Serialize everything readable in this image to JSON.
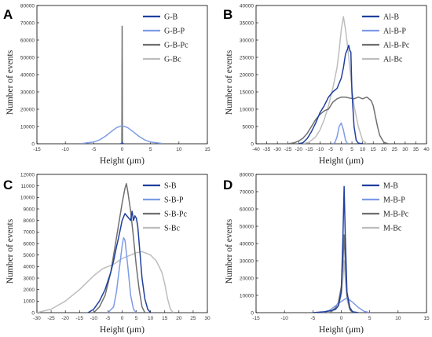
{
  "chart_data": [
    {
      "type": "line",
      "panel_label": "A",
      "xlabel": "Height (μm)",
      "ylabel": "Number of events",
      "xlim": [
        -15,
        15
      ],
      "ylim": [
        0,
        80000
      ],
      "xticks": [
        -15,
        -10,
        -5,
        0,
        5,
        10,
        15
      ],
      "yticks": [
        0,
        10000,
        20000,
        30000,
        40000,
        50000,
        60000,
        70000,
        80000
      ],
      "grid": false,
      "legend_position": "top-right",
      "series": [
        {
          "name": "G-B",
          "color": "#1f3f9e",
          "x": [
            -0.3,
            -0.05,
            0,
            0.05,
            0.3
          ],
          "y": [
            0,
            0,
            800,
            0,
            0
          ]
        },
        {
          "name": "G-B-P",
          "color": "#7e9be6",
          "x": [
            -7,
            -5,
            -4,
            -3,
            -2,
            -1,
            0,
            1,
            2,
            3,
            4,
            5,
            7
          ],
          "y": [
            200,
            1000,
            2200,
            4200,
            6800,
            9300,
            10500,
            9300,
            6800,
            4200,
            2200,
            1000,
            200
          ]
        },
        {
          "name": "G-B-Pc",
          "color": "#6f6f6f",
          "x": [
            -0.3,
            -0.05,
            0,
            0.05,
            0.3
          ],
          "y": [
            0,
            0,
            68000,
            0,
            0
          ]
        },
        {
          "name": "G-Bc",
          "color": "#bdbdbd",
          "x": [
            -0.3,
            -0.05,
            0,
            0.05,
            0.3
          ],
          "y": [
            0,
            0,
            48000,
            0,
            0
          ]
        }
      ]
    },
    {
      "type": "line",
      "panel_label": "B",
      "xlabel": "Height (μm)",
      "ylabel": "Number of events",
      "xlim": [
        -40,
        40
      ],
      "ylim": [
        0,
        40000
      ],
      "xticks": [
        -40,
        -35,
        -30,
        -25,
        -20,
        -15,
        -10,
        -5,
        0,
        5,
        10,
        15,
        20,
        25,
        30,
        35,
        40
      ],
      "yticks": [
        0,
        5000,
        10000,
        15000,
        20000,
        25000,
        30000,
        35000,
        40000
      ],
      "grid": false,
      "legend_position": "top-right",
      "series": [
        {
          "name": "Al-B",
          "color": "#1f3f9e",
          "x": [
            -20,
            -18,
            -16,
            -14,
            -12,
            -10,
            -8,
            -6,
            -4,
            -2,
            0,
            1,
            2,
            3,
            3.5,
            4,
            4.5,
            5,
            6,
            7,
            8,
            10
          ],
          "y": [
            0,
            300,
            1500,
            3500,
            6000,
            9000,
            11000,
            13500,
            15000,
            16000,
            19000,
            22000,
            26000,
            27500,
            28500,
            27000,
            26500,
            15000,
            5000,
            1000,
            200,
            0
          ]
        },
        {
          "name": "Al-B-P",
          "color": "#7e9be6",
          "x": [
            -4,
            -3,
            -2,
            -1,
            0,
            1,
            2,
            3
          ],
          "y": [
            0,
            300,
            2000,
            5000,
            6000,
            4000,
            1000,
            0
          ]
        },
        {
          "name": "Al-B-Pc",
          "color": "#6f6f6f",
          "x": [
            -25,
            -22,
            -20,
            -18,
            -16,
            -14,
            -12,
            -10,
            -9,
            -8,
            -7,
            -6,
            -5,
            -4,
            -3,
            -2,
            0,
            2,
            4,
            6,
            8,
            10,
            12,
            14,
            15,
            16,
            17,
            18,
            20,
            22
          ],
          "y": [
            0,
            300,
            800,
            1600,
            3000,
            5000,
            7000,
            8500,
            9000,
            9500,
            9800,
            10000,
            11000,
            12000,
            12500,
            13000,
            13500,
            13500,
            13200,
            13000,
            13500,
            13000,
            13500,
            12500,
            11000,
            8000,
            5000,
            2500,
            400,
            0
          ]
        },
        {
          "name": "Al-Bc",
          "color": "#bdbdbd",
          "x": [
            -18,
            -15,
            -12,
            -10,
            -8,
            -6,
            -4,
            -2,
            -1,
            0,
            1,
            2,
            3,
            4,
            5,
            6,
            8,
            10,
            12
          ],
          "y": [
            0,
            500,
            2000,
            4000,
            7000,
            11000,
            16000,
            22000,
            27000,
            33000,
            36800,
            33000,
            28000,
            22000,
            16000,
            11000,
            5000,
            1000,
            0
          ]
        }
      ]
    },
    {
      "type": "line",
      "panel_label": "C",
      "xlabel": "Height (μm)",
      "ylabel": "Number of events",
      "xlim": [
        -30,
        30
      ],
      "ylim": [
        0,
        12000
      ],
      "xticks": [
        -30,
        -25,
        -20,
        -15,
        -10,
        -5,
        0,
        5,
        10,
        15,
        20,
        25,
        30
      ],
      "yticks": [
        0,
        1000,
        2000,
        3000,
        4000,
        5000,
        6000,
        7000,
        8000,
        9000,
        10000,
        11000,
        12000
      ],
      "grid": false,
      "legend_position": "top-right",
      "series": [
        {
          "name": "S-B",
          "color": "#1f3f9e",
          "x": [
            -12,
            -10,
            -8,
            -6,
            -4,
            -3,
            -2,
            -1,
            0,
            1,
            2,
            3,
            3.5,
            4,
            4.5,
            5,
            5.5,
            6,
            7,
            8,
            9,
            10
          ],
          "y": [
            0,
            300,
            1000,
            2000,
            3500,
            4500,
            5700,
            6800,
            8000,
            8600,
            8300,
            8000,
            8800,
            8000,
            8400,
            8200,
            7500,
            6000,
            3000,
            1200,
            300,
            0
          ]
        },
        {
          "name": "S-B-P",
          "color": "#7e9be6",
          "x": [
            -5,
            -3,
            -2,
            -1,
            0,
            0.5,
            1,
            2,
            3,
            4,
            5
          ],
          "y": [
            0,
            500,
            1800,
            3800,
            5800,
            6500,
            6300,
            4000,
            1500,
            300,
            0
          ]
        },
        {
          "name": "S-B-Pc",
          "color": "#6f6f6f",
          "x": [
            -10,
            -8,
            -6,
            -4,
            -3,
            -2,
            -1,
            0,
            1,
            1.5,
            2,
            3,
            4,
            5,
            6,
            7,
            8
          ],
          "y": [
            0,
            500,
            1500,
            3500,
            5000,
            6500,
            8000,
            9500,
            10800,
            11200,
            10500,
            8800,
            6500,
            4000,
            2000,
            500,
            0
          ]
        },
        {
          "name": "S-Bc",
          "color": "#bdbdbd",
          "x": [
            -30,
            -25,
            -20,
            -15,
            -10,
            -7,
            -5,
            -3,
            0,
            3,
            5,
            7,
            8,
            10,
            12,
            14,
            15,
            16,
            17,
            18
          ],
          "y": [
            0,
            300,
            1000,
            2000,
            3200,
            3800,
            4000,
            4200,
            4700,
            5000,
            5200,
            5300,
            5200,
            5000,
            4500,
            3500,
            2500,
            1200,
            300,
            0
          ]
        }
      ]
    },
    {
      "type": "line",
      "panel_label": "D",
      "xlabel": "Height (μm)",
      "ylabel": "Number of events",
      "xlim": [
        -15,
        15
      ],
      "ylim": [
        0,
        80000
      ],
      "xticks": [
        -15,
        -10,
        -5,
        0,
        5,
        10,
        15
      ],
      "yticks": [
        0,
        10000,
        20000,
        30000,
        40000,
        50000,
        60000,
        70000,
        80000
      ],
      "grid": false,
      "legend_position": "top-right",
      "series": [
        {
          "name": "M-B",
          "color": "#1f3f9e",
          "x": [
            -5,
            -3,
            -2,
            -1,
            -0.5,
            0,
            0.3,
            0.5,
            0.7,
            1,
            1.5,
            2,
            3
          ],
          "y": [
            0,
            500,
            1000,
            2000,
            4000,
            12000,
            45000,
            73000,
            45000,
            12000,
            3000,
            500,
            0
          ]
        },
        {
          "name": "M-B-P",
          "color": "#7e9be6",
          "x": [
            -4,
            -3,
            -2,
            -1,
            0,
            1,
            2,
            3,
            4,
            5
          ],
          "y": [
            0,
            300,
            1500,
            4000,
            6500,
            8500,
            6000,
            3000,
            800,
            0
          ]
        },
        {
          "name": "M-B-Pc",
          "color": "#6f6f6f",
          "x": [
            -2,
            -1,
            -0.5,
            0,
            0.3,
            0.5,
            0.7,
            1,
            1.5,
            2
          ],
          "y": [
            0,
            3000,
            6000,
            15000,
            30000,
            45000,
            30000,
            10000,
            2000,
            0
          ]
        },
        {
          "name": "M-Bc",
          "color": "#bdbdbd",
          "x": [
            -2,
            -1,
            -0.5,
            0,
            0.3,
            0.5,
            0.7,
            1,
            1.5,
            2
          ],
          "y": [
            0,
            2000,
            4000,
            10000,
            20000,
            30000,
            20000,
            8000,
            1500,
            0
          ]
        }
      ]
    }
  ]
}
